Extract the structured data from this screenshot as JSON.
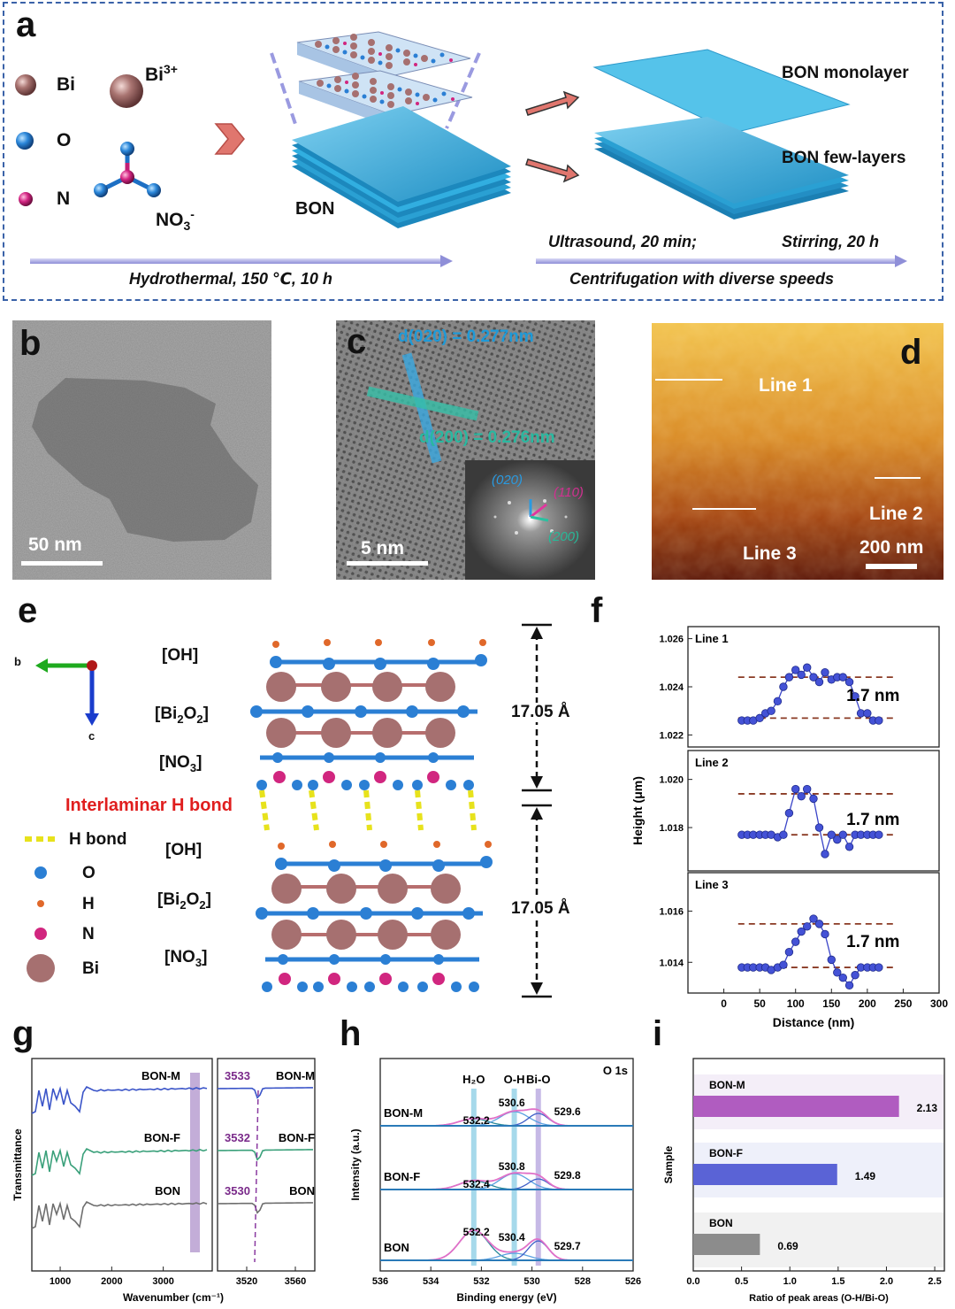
{
  "panel_a": {
    "label": "a",
    "legend": {
      "bi": "Bi",
      "o": "O",
      "n": "N",
      "bi3": "Bi",
      "bi3_sup": "3+",
      "no3": "NO",
      "no3_sub": "3",
      "no3_sup": "-"
    },
    "bon_label": "BON",
    "monolayer_label": "BON monolayer",
    "fewlayer_label": "BON few-layers",
    "step1": "Hydrothermal, 150 ℃, 10 h",
    "step2_a": "Ultrasound, 20 min;",
    "step2_b": "Stirring, 20 h",
    "step3": "Centrifugation with diverse speeds",
    "colors": {
      "border": "#3a62a8",
      "sheet": "#2fa3d6",
      "bi": "#a67070",
      "o": "#2b7fd4",
      "n": "#d1267f"
    }
  },
  "panel_b": {
    "label": "b",
    "scale": "50 nm"
  },
  "panel_c": {
    "label": "c",
    "scale": "5 nm",
    "d020": "d(020) = 0.277nm",
    "d200": "d(200) = 0.276nm",
    "fft_020": "(020)",
    "fft_110": "(110)",
    "fft_200": "(200)"
  },
  "panel_d": {
    "label": "d",
    "scale": "200 nm",
    "line1": "Line 1",
    "line2": "Line 2",
    "line3": "Line 3"
  },
  "panel_e": {
    "label": "e",
    "axis_b": "b",
    "axis_c": "c",
    "oh1": "[OH]",
    "bi2o2_1": {
      "base": "[Bi",
      "sub1": "2",
      "mid": "O",
      "sub2": "2",
      "end": "]"
    },
    "no3_1": {
      "base": "[NO",
      "sub": "3",
      "end": "]"
    },
    "interlaminar": "Interlaminar H bond",
    "oh2": "[OH]",
    "bi2o2_2": {
      "base": "[Bi",
      "sub1": "2",
      "mid": "O",
      "sub2": "2",
      "end": "]"
    },
    "no3_2": {
      "base": "[NO",
      "sub": "3",
      "end": "]"
    },
    "spacing_top": "17.05 Å",
    "spacing_bottom": "17.05 Å",
    "legend": {
      "hbond": "H bond",
      "o": "O",
      "h": "H",
      "n": "N",
      "bi": "Bi"
    }
  },
  "panel_f": {
    "label": "f"
  },
  "panel_g": {
    "label": "g"
  },
  "panel_h": {
    "label": "h"
  },
  "panel_i": {
    "label": "i"
  },
  "chart_data": [
    {
      "id": "f",
      "type": "scatter",
      "title": "",
      "xlabel": "Distance (nm)",
      "ylabel": "Height (μm)",
      "xlim": [
        -50,
        300
      ],
      "xticks": [
        "0",
        "50",
        "100",
        "150",
        "200",
        "250",
        "300"
      ],
      "subplots": [
        {
          "name": "Line 1",
          "annotation": "1.7 nm",
          "ylim": [
            1.0215,
            1.0265
          ],
          "yticks": [
            "1.022",
            "1.024",
            "1.026"
          ],
          "upper_level": 1.0244,
          "lower_level": 1.0227,
          "x": [
            25,
            33,
            41,
            50,
            58,
            66,
            75,
            83,
            91,
            100,
            108,
            116,
            125,
            133,
            141,
            150,
            158,
            166,
            175,
            183,
            191,
            200,
            208,
            216
          ],
          "y": [
            1.0226,
            1.0226,
            1.0226,
            1.0227,
            1.0229,
            1.023,
            1.0234,
            1.024,
            1.0244,
            1.0247,
            1.0245,
            1.0248,
            1.0244,
            1.0242,
            1.0246,
            1.0243,
            1.0244,
            1.0244,
            1.0242,
            1.0236,
            1.0229,
            1.0229,
            1.0226,
            1.0226
          ]
        },
        {
          "name": "Line 2",
          "annotation": "1.7 nm",
          "ylim": [
            1.0162,
            1.0212
          ],
          "yticks": [
            "1.018",
            "1.020"
          ],
          "upper_level": 1.0194,
          "lower_level": 1.0177,
          "x": [
            25,
            33,
            41,
            50,
            58,
            66,
            75,
            83,
            91,
            100,
            108,
            116,
            125,
            133,
            141,
            150,
            158,
            166,
            175,
            183,
            191,
            200,
            208,
            216
          ],
          "y": [
            1.0177,
            1.0177,
            1.0177,
            1.0177,
            1.0177,
            1.0177,
            1.0176,
            1.0177,
            1.0186,
            1.0196,
            1.0193,
            1.0196,
            1.0192,
            1.018,
            1.0169,
            1.0177,
            1.0175,
            1.0177,
            1.0172,
            1.0177,
            1.0177,
            1.0177,
            1.0177,
            1.0177
          ]
        },
        {
          "name": "Line 3",
          "annotation": "1.7 nm",
          "ylim": [
            1.0128,
            1.0175
          ],
          "yticks": [
            "1.014",
            "1.016"
          ],
          "upper_level": 1.0155,
          "lower_level": 1.0138,
          "x": [
            25,
            33,
            41,
            50,
            58,
            66,
            75,
            83,
            91,
            100,
            108,
            116,
            125,
            133,
            141,
            150,
            158,
            166,
            175,
            183,
            191,
            200,
            208,
            216
          ],
          "y": [
            1.0138,
            1.0138,
            1.0138,
            1.0138,
            1.0138,
            1.0137,
            1.0138,
            1.0139,
            1.0144,
            1.0148,
            1.0152,
            1.0154,
            1.0157,
            1.0155,
            1.0151,
            1.0141,
            1.0136,
            1.0134,
            1.0131,
            1.0135,
            1.0138,
            1.0138,
            1.0138,
            1.0138
          ]
        }
      ]
    },
    {
      "id": "g",
      "type": "line",
      "xlabel": "Wavenumber (cm⁻¹)",
      "ylabel": "Transmittance",
      "left_xticks": [
        "1000",
        "2000",
        "3000"
      ],
      "right_xticks": [
        "3520",
        "3560"
      ],
      "series": [
        {
          "name": "BON-M",
          "color": "#3a54c8"
        },
        {
          "name": "BON-F",
          "color": "#3aa07a"
        },
        {
          "name": "BON",
          "color": "#6e6e6e"
        }
      ],
      "peaks": [
        "3533",
        "3532",
        "3530"
      ]
    },
    {
      "id": "h",
      "type": "line",
      "title": "O 1s",
      "xlabel": "Binding energy (eV)",
      "ylabel": "Intensity (a.u.)",
      "xlim": [
        536,
        526
      ],
      "xticks": [
        "536",
        "534",
        "532",
        "530",
        "528",
        "526"
      ],
      "component_labels": [
        "H₂O",
        "O-H",
        "Bi-O"
      ],
      "series": [
        {
          "name": "BON-M",
          "peaks": [
            "532.2",
            "530.6",
            "529.6"
          ]
        },
        {
          "name": "BON-F",
          "peaks": [
            "532.4",
            "530.8",
            "529.8"
          ]
        },
        {
          "name": "BON",
          "peaks": [
            "532.2",
            "530.4",
            "529.7"
          ]
        }
      ]
    },
    {
      "id": "i",
      "type": "bar",
      "orientation": "horizontal",
      "xlabel": "Ratio of peak areas (O-H/Bi-O)",
      "ylabel": "Sample",
      "xlim": [
        0,
        2.6
      ],
      "xticks": [
        "0.0",
        "0.5",
        "1.0",
        "1.5",
        "2.0",
        "2.5"
      ],
      "categories": [
        "BON-M",
        "BON-F",
        "BON"
      ],
      "values": [
        2.13,
        1.49,
        0.69
      ],
      "value_labels": [
        "2.13",
        "1.49",
        "0.69"
      ],
      "colors": [
        "#b05cc0",
        "#5a63d6",
        "#8c8c8c"
      ]
    }
  ]
}
